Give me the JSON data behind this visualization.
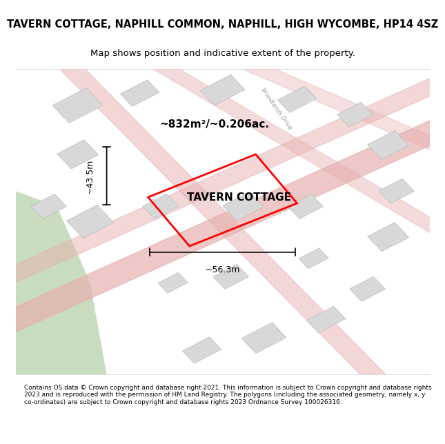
{
  "title": "TAVERN COTTAGE, NAPHILL COMMON, NAPHILL, HIGH WYCOMBE, HP14 4SZ",
  "subtitle": "Map shows position and indicative extent of the property.",
  "property_label": "TAVERN COTTAGE",
  "area_label": "~832m²/~0.206ac.",
  "width_label": "~56.3m",
  "height_label": "~43.5m",
  "footer": "Contains OS data © Crown copyright and database right 2021. This information is subject to Crown copyright and database rights 2023 and is reproduced with the permission of HM Land Registry. The polygons (including the associated geometry, namely x, y co-ordinates) are subject to Crown copyright and database rights 2023 Ordnance Survey 100026316.",
  "bg_color": "#f0ede8",
  "map_bg": "#f0ede8",
  "road_color": "#e8a0a0",
  "plot_outline_color": "#ff0000",
  "building_fill": "#d8d8d8",
  "green_area_color": "#c8ddc0",
  "footer_bg": "#ffffff",
  "title_bg": "#ffffff"
}
